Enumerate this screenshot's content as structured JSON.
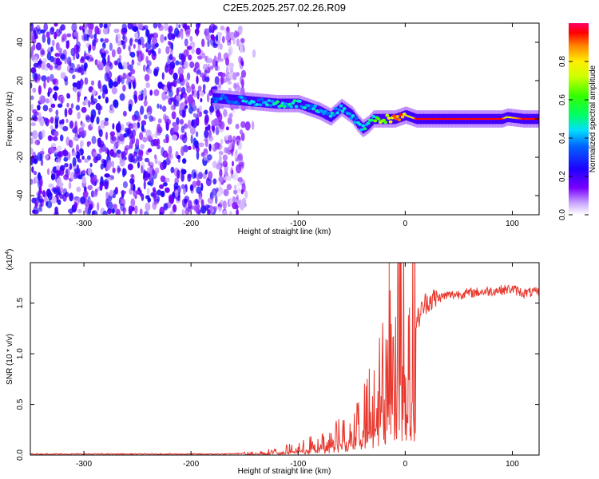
{
  "figure_title": "C2E5.2025.257.02.26.R09",
  "chart_data": [
    {
      "type": "heatmap",
      "title": "C2E5.2025.257.02.26.R09",
      "xlabel": "Height of straight line (km)",
      "ylabel": "Frequency (Hz)",
      "xlim": [
        -350,
        125
      ],
      "ylim": [
        -50,
        50
      ],
      "xticks": [
        -300,
        -200,
        -100,
        0,
        100
      ],
      "yticks": [
        -40,
        -20,
        0,
        20,
        40
      ],
      "xtick_labels": [
        "-300",
        "-200",
        "-100",
        "0",
        "100"
      ],
      "ytick_labels": [
        "-40",
        "-20",
        "0",
        "20",
        "40"
      ],
      "noise_region_x": [
        -350,
        -150
      ],
      "noise_level_typical": 0.2,
      "ridge": {
        "x": [
          -180,
          -160,
          -140,
          -120,
          -100,
          -90,
          -80,
          -70,
          -60,
          -55,
          -50,
          -45,
          -40,
          -35,
          -30,
          -20,
          -10,
          0,
          5,
          10,
          30,
          50,
          70,
          90,
          95,
          110,
          125
        ],
        "frequency": [
          11,
          10,
          9,
          8,
          8,
          6,
          4,
          1,
          6,
          4,
          2,
          -2,
          -5,
          -3,
          0,
          0,
          0,
          2,
          1,
          0,
          0,
          0,
          0,
          0,
          1,
          0,
          0
        ],
        "amplitude": [
          0.35,
          0.4,
          0.45,
          0.5,
          0.5,
          0.45,
          0.5,
          0.45,
          0.5,
          0.4,
          0.5,
          0.45,
          0.5,
          0.45,
          0.55,
          0.8,
          0.9,
          0.85,
          0.7,
          0.95,
          0.95,
          0.95,
          0.95,
          0.95,
          0.75,
          0.95,
          0.95
        ]
      },
      "colorbar": {
        "label": "Normalized spectral amplitude",
        "range": [
          0.0,
          1.0
        ],
        "ticks": [
          0.0,
          0.2,
          0.4,
          0.6,
          0.8
        ],
        "tick_labels": [
          "0.0",
          "0.2",
          "0.4",
          "0.6",
          "0.8"
        ]
      }
    },
    {
      "type": "line",
      "title": "",
      "xlabel": "Height of straight line (km)",
      "ylabel": "SNR (10 * v/v)",
      "scale_label": "(x10",
      "scale_exponent": "4",
      "scale_close": ")",
      "xlim": [
        -350,
        125
      ],
      "ylim": [
        0.0,
        1.9
      ],
      "xticks": [
        -300,
        -200,
        -100,
        0,
        100
      ],
      "yticks": [
        0.0,
        0.5,
        1.0,
        1.5
      ],
      "xtick_labels": [
        "-300",
        "-200",
        "-100",
        "0",
        "100"
      ],
      "ytick_labels": [
        "0.0",
        "0.5",
        "1.0",
        "1.5"
      ],
      "series": [
        {
          "name": "SNR",
          "color": "#e8382e",
          "x": [
            -350,
            -250,
            -170,
            -140,
            -120,
            -100,
            -80,
            -60,
            -40,
            -30,
            -20,
            -15,
            -10,
            0,
            5,
            10,
            15,
            20,
            30,
            40,
            60,
            80,
            100,
            110,
            125
          ],
          "y": [
            0.01,
            0.01,
            0.01,
            0.02,
            0.04,
            0.07,
            0.12,
            0.2,
            0.35,
            0.55,
            0.75,
            1.0,
            1.3,
            1.35,
            1.25,
            1.3,
            1.42,
            1.52,
            1.55,
            1.58,
            1.6,
            1.62,
            1.64,
            1.6,
            1.61
          ]
        }
      ],
      "spikes": [
        {
          "x": -15,
          "y": 1.95
        }
      ]
    }
  ]
}
